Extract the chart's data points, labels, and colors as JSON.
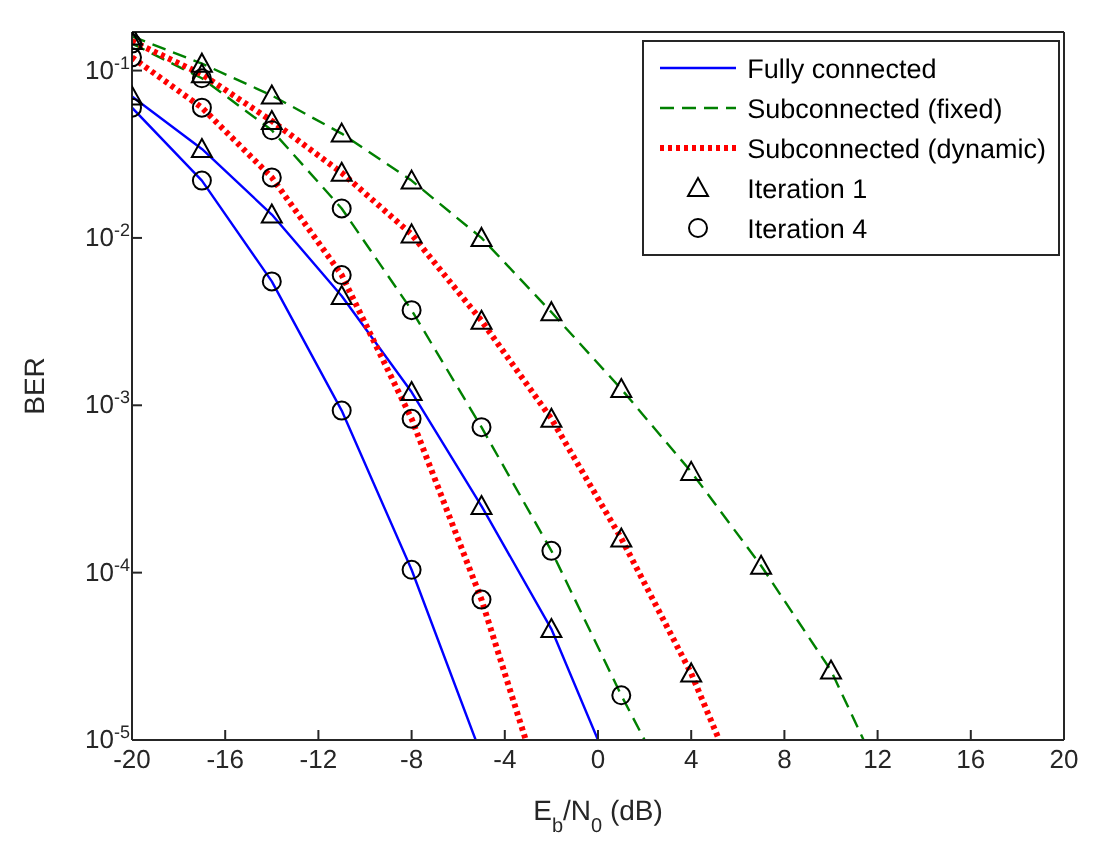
{
  "chart_data": {
    "type": "line",
    "xlabel": "E$_{b}$/N$_{0}$ (dB)",
    "ylabel": "BER",
    "log": "y",
    "xlim": [
      -20,
      20
    ],
    "xticks": [
      -20,
      -16,
      -12,
      -8,
      -4,
      0,
      4,
      8,
      12,
      16,
      20
    ],
    "ylim": [
      1e-05,
      0.17
    ],
    "yticks": [
      {
        "value": 1e-05,
        "label": "10$^{-5}$"
      },
      {
        "value": 0.0001,
        "label": "10$^{-4}$"
      },
      {
        "value": 0.001,
        "label": "10$^{-3}$"
      },
      {
        "value": 0.01,
        "label": "10$^{-2}$"
      },
      {
        "value": 0.1,
        "label": "10$^{-1}$"
      }
    ],
    "legend": "top right",
    "series": [
      {
        "name": "Fully connected",
        "color": "#0000ff",
        "line_style": "solid",
        "x": [
          -20,
          -17,
          -14,
          -11,
          -8,
          -5,
          -2,
          0
        ],
        "values": [
          0.07,
          0.034,
          0.0138,
          0.0045,
          0.0012,
          0.00025,
          4.6e-05,
          1e-05
        ]
      },
      {
        "color": "#0000ff",
        "line_style": "solid",
        "x": [
          -20,
          -17,
          -14,
          -11,
          -8,
          -5.25
        ],
        "values": [
          0.06,
          0.022,
          0.0055,
          0.00093,
          0.000104,
          1e-05
        ]
      },
      {
        "name": "Subconnected (fixed)",
        "color": "#008000",
        "line_style": "dashed",
        "x": [
          -20,
          -17,
          -14,
          -11,
          -8,
          -5,
          -2,
          1,
          4,
          7,
          10,
          11.4
        ],
        "values": [
          0.16,
          0.11,
          0.071,
          0.042,
          0.022,
          0.01,
          0.0036,
          0.00125,
          0.0004,
          0.00011,
          2.6e-05,
          1e-05
        ]
      },
      {
        "color": "#008000",
        "line_style": "dashed",
        "x": [
          -20,
          -17,
          -14,
          -11,
          -8,
          -5,
          -2,
          1,
          2
        ],
        "values": [
          0.145,
          0.09,
          0.044,
          0.015,
          0.0037,
          0.00074,
          0.000135,
          1.85e-05,
          1e-05
        ]
      },
      {
        "name": "Subconnected (dynamic)",
        "color": "#ff0000",
        "line_style": "dotted",
        "x": [
          -20,
          -17,
          -14,
          -11,
          -8,
          -5,
          -2,
          1,
          4,
          5.2
        ],
        "values": [
          0.15,
          0.095,
          0.05,
          0.0245,
          0.0105,
          0.0032,
          0.00083,
          0.00016,
          2.5e-05,
          1e-05
        ]
      },
      {
        "color": "#ff0000",
        "line_style": "dotted",
        "x": [
          -20,
          -17,
          -14,
          -11,
          -8,
          -5,
          -3.1
        ],
        "values": [
          0.12,
          0.06,
          0.023,
          0.006,
          0.00083,
          6.9e-05,
          1e-05
        ]
      },
      {
        "name": "Iteration 1",
        "type": "scatter",
        "color": "#000000",
        "marker": "triangle",
        "x": [
          -20,
          -17,
          -14,
          -11,
          -8,
          -5,
          -2,
          -20,
          -17,
          -14,
          -11,
          -8,
          -5,
          -2,
          1,
          4,
          7,
          10,
          -20,
          -17,
          -14,
          -11,
          -8,
          -5,
          -2,
          1,
          4
        ],
        "values": [
          0.07,
          0.034,
          0.0138,
          0.0045,
          0.0012,
          0.00025,
          4.6e-05,
          0.16,
          0.11,
          0.071,
          0.042,
          0.022,
          0.01,
          0.0036,
          0.00125,
          0.0004,
          0.00011,
          2.6e-05,
          0.15,
          0.095,
          0.05,
          0.0245,
          0.0105,
          0.0032,
          0.00083,
          0.00016,
          2.5e-05
        ]
      },
      {
        "name": "Iteration 4",
        "type": "scatter",
        "color": "#000000",
        "marker": "circle",
        "x": [
          -20,
          -17,
          -14,
          -11,
          -8,
          -20,
          -17,
          -14,
          -11,
          -8,
          -5,
          -2,
          1,
          -20,
          -17,
          -14,
          -11,
          -8,
          -5
        ],
        "values": [
          0.06,
          0.022,
          0.0055,
          0.00093,
          0.000104,
          0.145,
          0.09,
          0.044,
          0.015,
          0.0037,
          0.00074,
          0.000135,
          1.85e-05,
          0.12,
          0.06,
          0.023,
          0.006,
          0.00083,
          6.9e-05
        ]
      }
    ]
  }
}
